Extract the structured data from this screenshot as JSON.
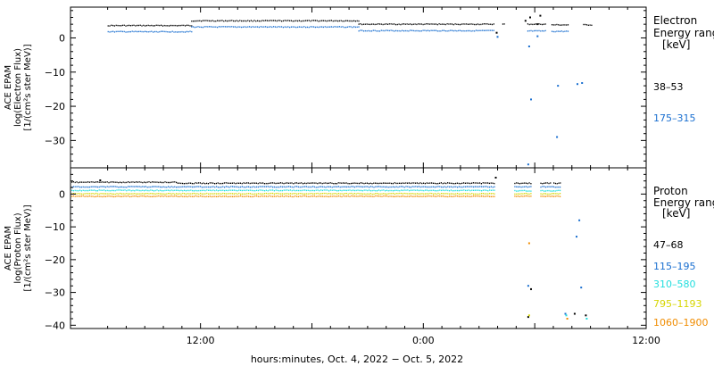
{
  "chart_data": [
    {
      "type": "scatter",
      "ylabel": [
        "ACE EPAM",
        "log(Electron Flux)",
        "[1/(cm²s ster MeV)]"
      ],
      "ylim": [
        -38,
        9
      ],
      "yticks": [
        0,
        -10,
        -20,
        -30
      ],
      "yticklabels": [
        "0",
        "−10",
        "−20",
        "−30"
      ],
      "legend_title": [
        "Electron",
        "Energy range",
        "[keV]"
      ],
      "series": [
        {
          "name": "38–53",
          "color": "#000000",
          "segments": [
            {
              "x": [
                -10,
                -1
              ],
              "y": 3.6
            },
            {
              "x": [
                -1,
                17
              ],
              "y": 5.0
            },
            {
              "x": [
                17,
                31.7
              ],
              "y": 4.0
            },
            {
              "x": [
                32.5,
                32.8
              ],
              "y": 4.0
            },
            {
              "x": [
                35.2,
                37.2
              ],
              "y": 4.0
            },
            {
              "x": [
                37.8,
                39.6
              ],
              "y": 3.8
            },
            {
              "x": [
                41.2,
                42.1
              ],
              "y": 3.8
            }
          ],
          "points": [
            [
              31.9,
              1.5
            ],
            [
              35.0,
              5.0
            ],
            [
              35.5,
              6.0
            ],
            [
              36.3,
              4.0
            ],
            [
              36.6,
              6.5
            ]
          ]
        },
        {
          "name": "175–315",
          "color": "#1a6fd0",
          "segments": [
            {
              "x": [
                -10,
                -1
              ],
              "y": 1.8
            },
            {
              "x": [
                -1,
                17
              ],
              "y": 3.2
            },
            {
              "x": [
                17,
                31.7
              ],
              "y": 2.1
            },
            {
              "x": [
                35.2,
                37.2
              ],
              "y": 2.0
            },
            {
              "x": [
                37.8,
                39.6
              ],
              "y": 1.9
            }
          ],
          "points": [
            [
              32.0,
              0.3
            ],
            [
              35.4,
              -2.5
            ],
            [
              35.6,
              -18.0
            ],
            [
              35.3,
              -37.0
            ],
            [
              36.3,
              0.5
            ],
            [
              38.4,
              -29.0
            ],
            [
              38.5,
              -14.0
            ],
            [
              40.6,
              -13.5
            ],
            [
              41.1,
              -13.2
            ]
          ]
        }
      ]
    },
    {
      "type": "scatter",
      "ylabel": [
        "ACE EPAM",
        "log(Proton Flux)",
        "[1/(cm²s ster MeV)]"
      ],
      "ylim": [
        -41,
        8
      ],
      "yticks": [
        0,
        -10,
        -20,
        -30,
        -40
      ],
      "yticklabels": [
        "0",
        "−10",
        "−20",
        "−30",
        "−40"
      ],
      "legend_title": [
        "Proton",
        "Energy range",
        "[keV]"
      ],
      "xlabel": "hours:minutes, Oct.  4, 2022 − Oct.  5, 2022",
      "xlim": [
        -14,
        48
      ],
      "xticks": [
        0,
        12,
        24,
        36,
        48
      ],
      "xticklabels": [
        "12:00",
        "",
        "0:00",
        "",
        "12:00"
      ],
      "series": [
        {
          "name": "47–68",
          "color": "#000000",
          "segments": [
            {
              "x": [
                -14,
                -2.5
              ],
              "y": 3.6
            },
            {
              "x": [
                -2.5,
                31.7
              ],
              "y": 3.3
            },
            {
              "x": [
                33.8,
                35.7
              ],
              "y": 3.3
            },
            {
              "x": [
                36.6,
                37.8
              ],
              "y": 3.3
            },
            {
              "x": [
                38.0,
                38.8
              ],
              "y": 3.3
            }
          ],
          "points": [
            [
              31.8,
              5.0
            ],
            [
              -10.8,
              4.2
            ],
            [
              35.3,
              -37.5
            ],
            [
              35.6,
              -29.0
            ],
            [
              40.3,
              -36.5
            ],
            [
              41.5,
              -37.0
            ]
          ]
        },
        {
          "name": "115–195",
          "color": "#1a6fd0",
          "segments": [
            {
              "x": [
                -14,
                31.7
              ],
              "y": 2.2
            },
            {
              "x": [
                33.8,
                35.7
              ],
              "y": 2.2
            },
            {
              "x": [
                36.6,
                38.8
              ],
              "y": 2.2
            }
          ],
          "points": [
            [
              35.3,
              -28.0
            ],
            [
              39.3,
              -36.5
            ],
            [
              40.5,
              -13.0
            ],
            [
              40.8,
              -8.0
            ],
            [
              41.0,
              -28.5
            ]
          ]
        },
        {
          "name": "310–580",
          "color": "#22dede",
          "segments": [
            {
              "x": [
                -14,
                31.7
              ],
              "y": 1.1
            },
            {
              "x": [
                33.8,
                35.7
              ],
              "y": 1.0
            },
            {
              "x": [
                36.6,
                38.8
              ],
              "y": 1.0
            }
          ],
          "points": [
            [
              39.4,
              -37.0
            ],
            [
              41.6,
              -38.0
            ]
          ]
        },
        {
          "name": "795–1193",
          "color": "#d6d600",
          "segments": [
            {
              "x": [
                -14,
                31.7
              ],
              "y": 0.1
            },
            {
              "x": [
                33.8,
                35.7
              ],
              "y": 0.1
            },
            {
              "x": [
                36.6,
                38.8
              ],
              "y": 0.1
            }
          ],
          "points": [
            [
              35.4,
              -37.0
            ]
          ]
        },
        {
          "name": "1060–1900",
          "color": "#f08c00",
          "segments": [
            {
              "x": [
                -14,
                31.7
              ],
              "y": -0.7
            },
            {
              "x": [
                33.8,
                35.7
              ],
              "y": -0.7
            },
            {
              "x": [
                36.6,
                38.8
              ],
              "y": -0.7
            }
          ],
          "points": [
            [
              35.4,
              -15.0
            ],
            [
              39.5,
              -38.0
            ]
          ]
        }
      ]
    }
  ]
}
